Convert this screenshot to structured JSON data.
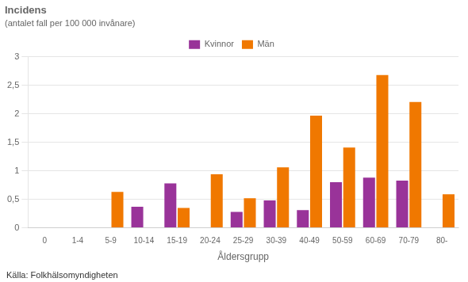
{
  "chart_data": {
    "type": "bar",
    "title": "Incidens",
    "subtitle": "(antalet fall per 100 000 invånare)",
    "xlabel": "Åldersgrupp",
    "annotations": [
      "Källa: Folkhälsomyndigheten"
    ],
    "categories": [
      "0",
      "1-4",
      "5-9",
      "10-14",
      "15-19",
      "20-24",
      "25-29",
      "30-39",
      "40-49",
      "50-59",
      "60-69",
      "70-79",
      "80-"
    ],
    "series": [
      {
        "name": "Kvinnor",
        "color": "#993399",
        "values": [
          0,
          0,
          0,
          0.37,
          0.78,
          0,
          0.28,
          0.48,
          0.31,
          0.8,
          0.88,
          0.83,
          0
        ]
      },
      {
        "name": "Män",
        "color": "#f07800",
        "values": [
          0,
          0,
          0.63,
          0,
          0.35,
          0.94,
          0.52,
          1.06,
          1.97,
          1.41,
          2.68,
          2.21,
          0.59
        ]
      }
    ],
    "ylim": [
      0,
      3
    ],
    "yticks": [
      0,
      {
        "value": 0.5,
        "label": "0,5"
      },
      1,
      {
        "value": 1.5,
        "label": "1,5"
      },
      2,
      {
        "value": 2.5,
        "label": "2,5"
      },
      3
    ],
    "grid": true,
    "legend": "top"
  }
}
